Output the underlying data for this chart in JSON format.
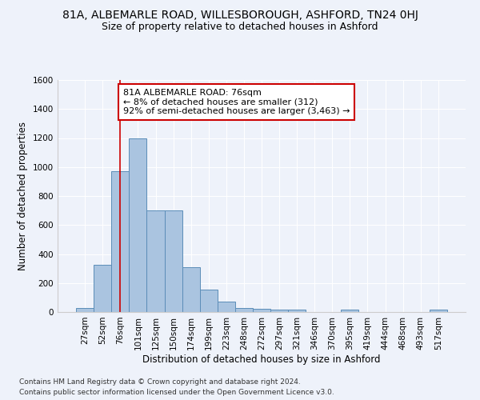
{
  "title": "81A, ALBEMARLE ROAD, WILLESBOROUGH, ASHFORD, TN24 0HJ",
  "subtitle": "Size of property relative to detached houses in Ashford",
  "xlabel": "Distribution of detached houses by size in Ashford",
  "ylabel": "Number of detached properties",
  "bar_labels": [
    "27sqm",
    "52sqm",
    "76sqm",
    "101sqm",
    "125sqm",
    "150sqm",
    "174sqm",
    "199sqm",
    "223sqm",
    "248sqm",
    "272sqm",
    "297sqm",
    "321sqm",
    "346sqm",
    "370sqm",
    "395sqm",
    "419sqm",
    "444sqm",
    "468sqm",
    "493sqm",
    "517sqm"
  ],
  "bar_values": [
    30,
    325,
    970,
    1195,
    700,
    700,
    310,
    155,
    70,
    30,
    20,
    15,
    15,
    0,
    0,
    15,
    0,
    0,
    0,
    0,
    15
  ],
  "bar_color": "#aac4e0",
  "bar_edge_color": "#5b8db8",
  "vline_index": 2,
  "annotation_text": "81A ALBEMARLE ROAD: 76sqm\n← 8% of detached houses are smaller (312)\n92% of semi-detached houses are larger (3,463) →",
  "annotation_box_color": "#ffffff",
  "annotation_box_edge_color": "#cc0000",
  "vline_color": "#cc0000",
  "ylim": [
    0,
    1600
  ],
  "yticks": [
    0,
    200,
    400,
    600,
    800,
    1000,
    1200,
    1400,
    1600
  ],
  "footer1": "Contains HM Land Registry data © Crown copyright and database right 2024.",
  "footer2": "Contains public sector information licensed under the Open Government Licence v3.0.",
  "background_color": "#eef2fa",
  "plot_background": "#eef2fa",
  "grid_color": "#ffffff",
  "title_fontsize": 10,
  "subtitle_fontsize": 9,
  "axis_label_fontsize": 8.5,
  "tick_fontsize": 7.5,
  "annotation_fontsize": 8,
  "footer_fontsize": 6.5
}
